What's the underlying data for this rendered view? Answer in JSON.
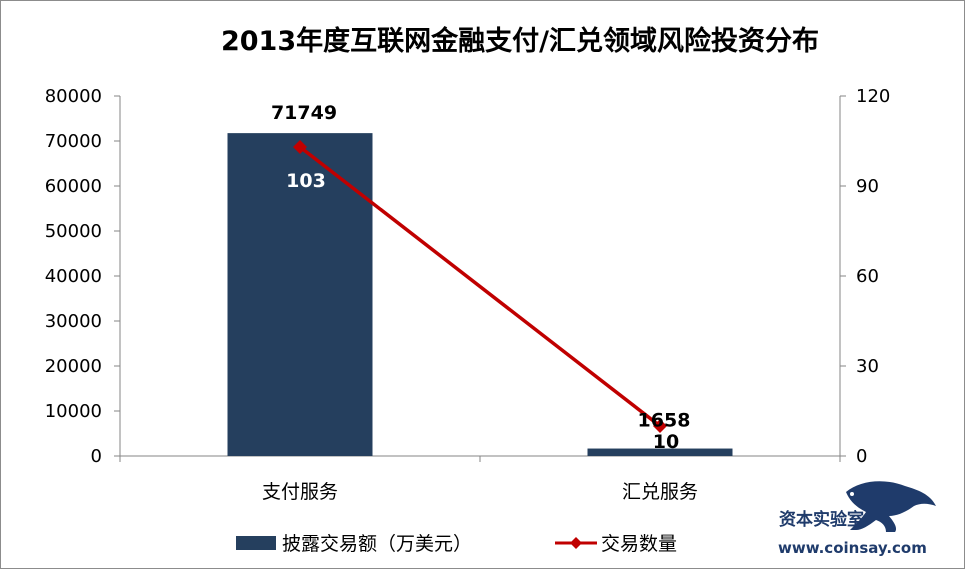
{
  "chart_data": {
    "type": "bar+line",
    "title": "2013年度互联网金融支付/汇兑领域风险投资分布",
    "categories": [
      "支付服务",
      "汇兑服务"
    ],
    "series": [
      {
        "name": "披露交易额（万美元）",
        "type": "bar",
        "axis": "left",
        "values": [
          71749,
          1658
        ],
        "labels": [
          "71749",
          "1658"
        ]
      },
      {
        "name": "交易数量",
        "type": "line",
        "axis": "right",
        "values": [
          103,
          10
        ],
        "labels": [
          "103",
          "10"
        ]
      }
    ],
    "y_left": {
      "min": 0,
      "max": 80000,
      "ticks": [
        "0",
        "10000",
        "20000",
        "30000",
        "40000",
        "50000",
        "60000",
        "70000",
        "80000"
      ]
    },
    "y_right": {
      "min": 0,
      "max": 120,
      "ticks": [
        "0",
        "30",
        "60",
        "90",
        "120"
      ]
    },
    "legend_position": "bottom",
    "grid": false
  },
  "colors": {
    "bar": "#253f5e",
    "line": "#c00000"
  },
  "watermark": {
    "brand": "资本实验室",
    "url": "www.coinsay.com",
    "icon": "panther-logo-icon"
  }
}
